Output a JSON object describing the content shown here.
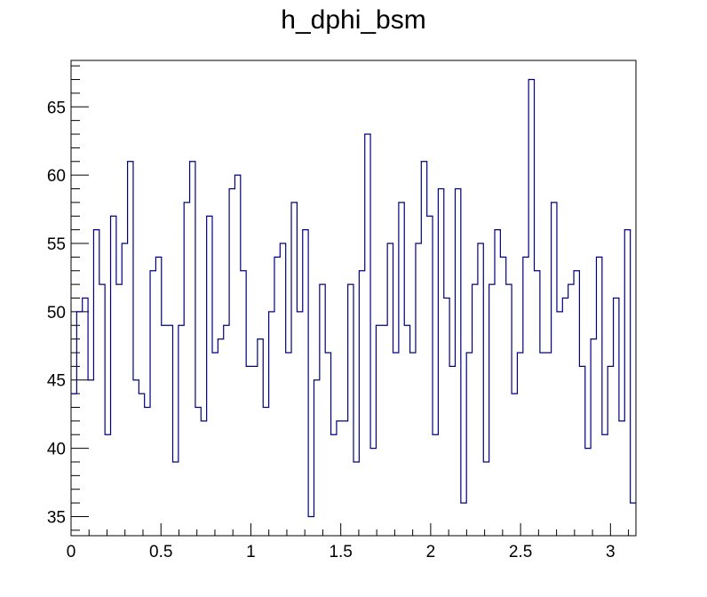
{
  "chart_data": {
    "type": "histogram",
    "title": "h_dphi_bsm",
    "xlabel": "",
    "ylabel": "",
    "xlim": [
      0,
      3.1416
    ],
    "ylim": [
      33.6,
      68.4
    ],
    "grid": false,
    "legend": "none",
    "line_color": "#000080",
    "x_ticks": [
      0,
      0.5,
      1,
      1.5,
      2,
      2.5,
      3
    ],
    "x_tick_labels": [
      "0",
      "0.5",
      "1",
      "1.5",
      "2",
      "2.5",
      "3"
    ],
    "y_ticks": [
      35,
      40,
      45,
      50,
      55,
      60,
      65
    ],
    "y_tick_labels": [
      "35",
      "40",
      "45",
      "50",
      "55",
      "60",
      "65"
    ],
    "bin_low": 0,
    "bin_high": 3.1416,
    "counts": [
      44,
      50,
      51,
      45,
      56,
      52,
      41,
      57,
      52,
      55,
      61,
      45,
      44,
      43,
      53,
      54,
      49,
      49,
      39,
      49,
      58,
      61,
      43,
      42,
      57,
      47,
      48,
      49,
      59,
      60,
      53,
      46,
      46,
      48,
      43,
      50,
      54,
      55,
      47,
      58,
      50,
      56,
      35,
      45,
      52,
      47,
      41,
      42,
      42,
      52,
      39,
      53,
      63,
      40,
      49,
      49,
      55,
      47,
      58,
      49,
      47,
      55,
      61,
      57,
      41,
      59,
      51,
      46,
      59,
      36,
      47,
      52,
      55,
      39,
      52,
      56,
      54,
      52,
      44,
      47,
      54,
      67,
      53,
      47,
      47,
      58,
      50,
      51,
      52,
      53,
      46,
      40,
      48,
      54,
      41,
      46,
      51,
      42,
      56,
      36
    ]
  }
}
